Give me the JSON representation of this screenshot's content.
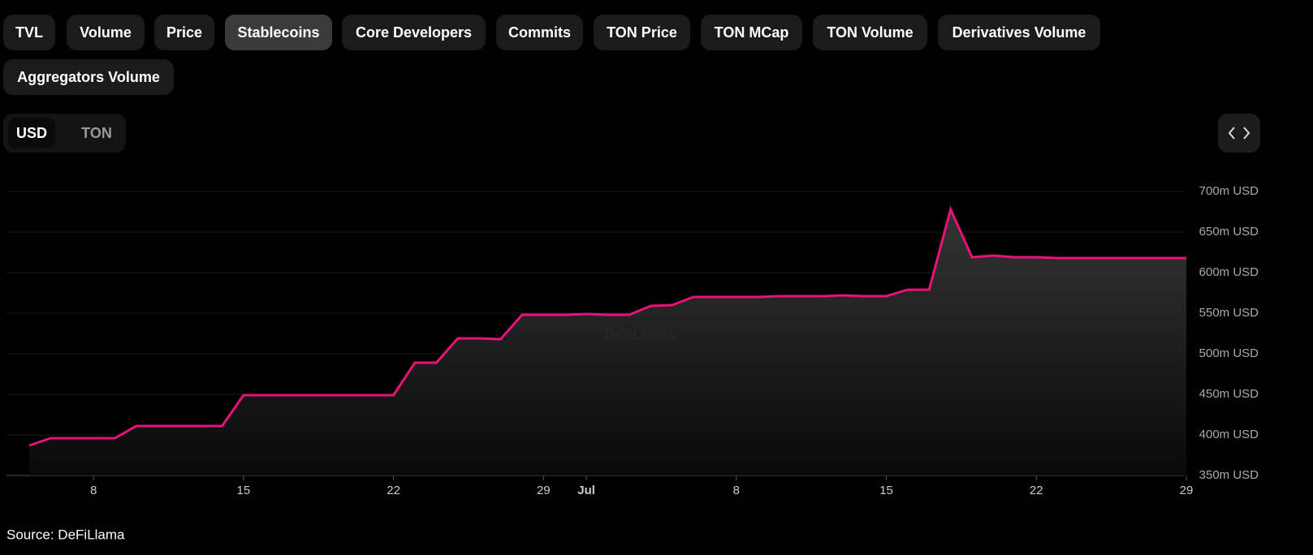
{
  "tabs": [
    "TVL",
    "Volume",
    "Price",
    "Stablecoins",
    "Core Developers",
    "Commits",
    "TON Price",
    "TON MCap",
    "TON Volume",
    "Derivatives Volume",
    "Aggregators Volume"
  ],
  "active_tab": 3,
  "currency": [
    "USD",
    "TON"
  ],
  "active_currency": 0,
  "source": "Source: DeFiLlama",
  "chart_data": {
    "type": "area",
    "watermark": "DefiLlama",
    "x": [
      5,
      6,
      7,
      8,
      9,
      10,
      11,
      12,
      13,
      14,
      15,
      16,
      17,
      18,
      19,
      20,
      21,
      22,
      23,
      24,
      25,
      26,
      27,
      28,
      29,
      30,
      31,
      32,
      33,
      34,
      35,
      36,
      37,
      38,
      39,
      40,
      41,
      42,
      43,
      44,
      45,
      46,
      47,
      48,
      49,
      50,
      51,
      52,
      53,
      54,
      55,
      56,
      57,
      58,
      59
    ],
    "series": [
      {
        "color": "#e8127a",
        "values": [
          387,
          396,
          396,
          396,
          396,
          411,
          411,
          411,
          411,
          411,
          449,
          449,
          449,
          449,
          449,
          449,
          449,
          449,
          489,
          489,
          519,
          519,
          518,
          548,
          548,
          548,
          549,
          548,
          548,
          559,
          560,
          570,
          570,
          570,
          570,
          571,
          571,
          571,
          572,
          571,
          571,
          579,
          579,
          678,
          619,
          621,
          619,
          619,
          618,
          618,
          618,
          618,
          618,
          618,
          618
        ]
      }
    ],
    "xlim": [
      3.94,
      59
    ],
    "xticks": [
      8,
      15,
      22,
      29,
      {
        "value": 31,
        "label": "Jul"
      },
      {
        "value": 38,
        "label": "8"
      },
      {
        "value": 45,
        "label": "15"
      },
      {
        "value": 52,
        "label": "22"
      },
      {
        "value": 59,
        "label": "29"
      }
    ],
    "ylim": [
      350,
      700
    ],
    "yticks": [
      {
        "value": 350,
        "label": "350m USD"
      },
      {
        "value": 400,
        "label": "400m USD"
      },
      {
        "value": 450,
        "label": "450m USD"
      },
      {
        "value": 500,
        "label": "500m USD"
      },
      {
        "value": 550,
        "label": "550m USD"
      },
      {
        "value": 600,
        "label": "600m USD"
      },
      {
        "value": 650,
        "label": "650m USD"
      },
      {
        "value": 700,
        "label": "700m USD"
      }
    ],
    "grid": true
  }
}
